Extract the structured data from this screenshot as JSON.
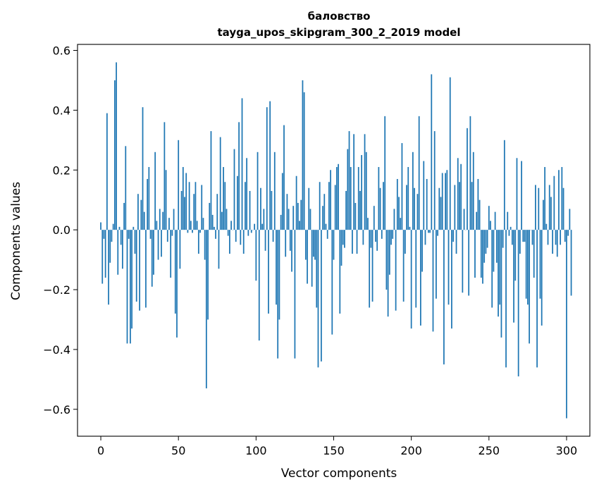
{
  "chart_data": {
    "type": "bar",
    "title": "баловство",
    "subtitle": "tayga_upos_skipgram_300_2_2019 model",
    "xlabel": "Vector components",
    "ylabel": "Components values",
    "xlim": [
      -15,
      315
    ],
    "ylim": [
      -0.69,
      0.62
    ],
    "xticks": [
      0,
      50,
      100,
      150,
      200,
      250,
      300
    ],
    "xtick_labels": [
      "0",
      "50",
      "100",
      "150",
      "200",
      "250",
      "300"
    ],
    "yticks": [
      -0.6,
      -0.4,
      -0.2,
      0.0,
      0.2,
      0.4,
      0.6
    ],
    "ytick_labels": [
      "−0.6",
      "−0.4",
      "−0.2",
      "0.0",
      "0.2",
      "0.4",
      "0.6"
    ],
    "bar_color": "#1f77b4",
    "grid": false,
    "legend": "none",
    "x_start": 0,
    "values": [
      0.025,
      -0.18,
      -0.03,
      -0.16,
      0.39,
      -0.25,
      -0.11,
      -0.04,
      0.02,
      0.5,
      0.56,
      -0.15,
      0.01,
      -0.05,
      -0.13,
      0.09,
      0.28,
      -0.38,
      -0.03,
      -0.38,
      -0.33,
      0.01,
      -0.08,
      -0.24,
      0.12,
      -0.27,
      0.1,
      0.41,
      0.06,
      -0.26,
      0.17,
      0.21,
      -0.03,
      -0.19,
      -0.15,
      0.26,
      0.03,
      -0.1,
      0.07,
      -0.09,
      0.06,
      0.36,
      0.2,
      -0.04,
      0.04,
      -0.16,
      -0.02,
      0.07,
      -0.28,
      -0.36,
      0.3,
      -0.13,
      0.13,
      0.21,
      0.11,
      0.19,
      -0.01,
      0.16,
      0.03,
      -0.01,
      0.12,
      0.16,
      0.03,
      -0.08,
      -0.01,
      0.15,
      0.04,
      -0.1,
      -0.53,
      -0.3,
      0.09,
      0.33,
      0.05,
      0.01,
      -0.03,
      0.12,
      -0.13,
      0.31,
      0.06,
      0.21,
      0.16,
      0.07,
      -0.02,
      -0.08,
      0.03,
      0.0,
      0.27,
      -0.04,
      0.18,
      0.36,
      -0.05,
      0.44,
      -0.08,
      0.16,
      0.24,
      -0.02,
      0.13,
      -0.01,
      0.0,
      0.02,
      -0.17,
      0.26,
      -0.37,
      0.14,
      0.02,
      0.07,
      -0.07,
      0.41,
      -0.28,
      0.43,
      0.13,
      -0.04,
      0.26,
      -0.25,
      -0.43,
      -0.3,
      0.05,
      0.19,
      0.35,
      -0.09,
      0.12,
      0.07,
      -0.07,
      -0.14,
      0.08,
      -0.43,
      0.18,
      0.09,
      0.03,
      0.1,
      0.5,
      0.46,
      -0.1,
      -0.18,
      0.14,
      0.07,
      -0.19,
      -0.09,
      -0.1,
      -0.26,
      -0.46,
      0.16,
      -0.44,
      0.08,
      0.12,
      0.02,
      -0.03,
      0.16,
      0.2,
      -0.35,
      -0.1,
      0.15,
      0.21,
      0.22,
      -0.28,
      -0.12,
      -0.05,
      -0.06,
      0.13,
      0.27,
      0.33,
      0.21,
      -0.08,
      0.32,
      0.09,
      -0.08,
      0.21,
      0.13,
      0.25,
      -0.05,
      0.32,
      0.26,
      0.04,
      -0.26,
      -0.06,
      -0.24,
      0.08,
      -0.04,
      -0.07,
      0.21,
      0.14,
      -0.03,
      0.16,
      0.38,
      -0.2,
      -0.29,
      -0.15,
      -0.05,
      -0.03,
      0.07,
      -0.27,
      0.17,
      0.11,
      0.04,
      0.29,
      -0.24,
      -0.08,
      0.15,
      0.21,
      0.01,
      -0.33,
      0.26,
      0.14,
      -0.26,
      0.12,
      0.38,
      -0.32,
      -0.14,
      0.23,
      -0.05,
      0.17,
      -0.01,
      -0.01,
      0.52,
      -0.34,
      0.33,
      -0.23,
      -0.02,
      0.14,
      0.11,
      0.19,
      -0.45,
      0.19,
      0.2,
      -0.25,
      0.51,
      -0.33,
      -0.04,
      0.15,
      -0.08,
      0.24,
      0.16,
      0.22,
      -0.21,
      0.07,
      0.0,
      0.34,
      -0.22,
      0.38,
      0.16,
      0.26,
      -0.16,
      0.06,
      0.17,
      0.1,
      -0.16,
      -0.18,
      -0.11,
      -0.08,
      -0.06,
      0.08,
      0.03,
      -0.26,
      -0.14,
      0.06,
      -0.11,
      -0.29,
      -0.25,
      -0.36,
      -0.06,
      0.3,
      -0.46,
      0.06,
      -0.02,
      0.01,
      -0.05,
      -0.31,
      -0.17,
      0.24,
      -0.49,
      -0.08,
      0.23,
      -0.04,
      -0.04,
      -0.23,
      -0.25,
      -0.38,
      0.0,
      -0.05,
      -0.16,
      0.15,
      -0.46,
      0.14,
      -0.23,
      -0.32,
      0.1,
      0.21,
      0.02,
      -0.05,
      0.15,
      0.11,
      -0.08,
      0.18,
      -0.05,
      -0.09,
      0.2,
      -0.05,
      0.21,
      0.14,
      -0.04,
      -0.63,
      -0.02,
      0.07,
      -0.22
    ]
  }
}
